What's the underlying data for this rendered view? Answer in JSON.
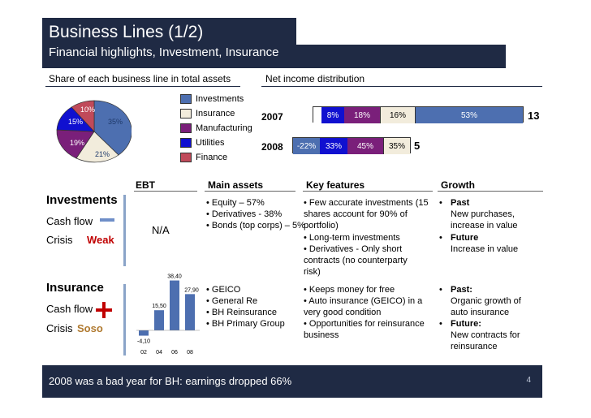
{
  "header": {
    "title": "Business Lines (1/2)",
    "subtitle": "Financial highlights, Investment, Insurance"
  },
  "assets_chart": {
    "label": "Share of each business line in total assets",
    "pie_labels": [
      "35%",
      "21%",
      "19%",
      "15%",
      "10%"
    ],
    "legend": [
      "Investments",
      "Insurance",
      "Manufacturing",
      "Utilities",
      "Finance"
    ]
  },
  "income_chart": {
    "label": "Net income distribution",
    "rows": [
      {
        "year": "2007",
        "total": "13",
        "segments": [
          "8%",
          "18%",
          "16%",
          "53%"
        ]
      },
      {
        "year": "2008",
        "total": "5",
        "segments": [
          "-22%",
          "33%",
          "45%",
          "35%"
        ]
      }
    ]
  },
  "table": {
    "headers": {
      "ebt": "EBT",
      "assets": "Main assets",
      "features": "Key features",
      "growth": "Growth"
    },
    "investments": {
      "name": "Investments",
      "cash_flow": "Cash flow",
      "crisis_label": "Crisis",
      "crisis_value": "Weak",
      "ebt": "N/A",
      "assets": [
        "• Equity – 57%",
        "• Derivatives  - 38%",
        "• Bonds (top corps) – 5%"
      ],
      "features": [
        "• Few accurate investments (15",
        "   shares account for 90% of",
        "   portfolio)",
        "• Long-term investments",
        "• Derivatives - Only short",
        "   contracts (no counterparty",
        "   risk)"
      ],
      "growth_past_label": "Past",
      "growth_past": [
        "New purchases,",
        "increase in value"
      ],
      "growth_future_label": "Future",
      "growth_future": [
        "Increase in value"
      ]
    },
    "insurance": {
      "name": "Insurance",
      "cash_flow": "Cash flow",
      "crisis_label": "Crisis",
      "crisis_value": "Soso",
      "assets": [
        "• GEICO",
        "• General Re",
        "• BH Reinsurance",
        "• BH Primary Group"
      ],
      "features": [
        "• Keeps money for free",
        "• Auto insurance (GEICO) in a",
        "   very good condition",
        "• Opportunities for reinsurance",
        "   business"
      ],
      "growth_past_label": "Past:",
      "growth_past": [
        "Organic growth of",
        "auto insurance"
      ],
      "growth_future_label": "Future:",
      "growth_future": [
        "New contracts for",
        "reinsurance"
      ]
    }
  },
  "chart_data": {
    "type": "bar",
    "categories": [
      "02",
      "04",
      "06",
      "08"
    ],
    "values": [
      -4.1,
      15.5,
      38.4,
      27.9
    ],
    "labels": [
      "-4,10",
      "15,50",
      "38,40",
      "27,90"
    ],
    "title": "EBT"
  },
  "footer": {
    "text": "2008 was a bad year for BH: earnings dropped 66%",
    "page": "4"
  },
  "colors": {
    "header_bg": "#1f2a44",
    "investments": "#4d6fb0",
    "insurance": "#f2ecdc",
    "manufacturing": "#7a1f7a",
    "utilities": "#1010d0",
    "finance": "#c04a5a",
    "weak": "#c00000",
    "soso": "#b07a30"
  }
}
